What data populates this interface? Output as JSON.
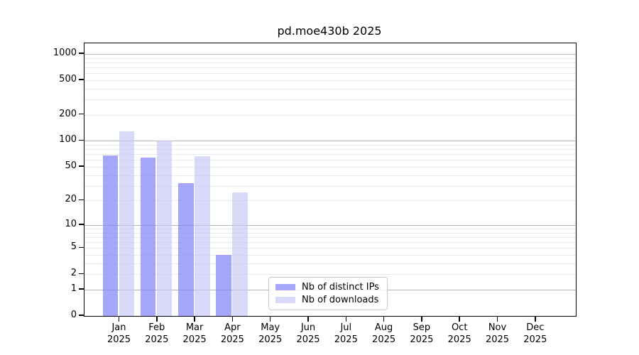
{
  "title": "pd.moe430b 2025",
  "legend": {
    "items": [
      {
        "label": "Nb of distinct IPs",
        "swatch_color": "#a7a7fa"
      },
      {
        "label": "Nb of downloads",
        "swatch_color": "#d9d9fa"
      }
    ]
  },
  "chart_data": {
    "type": "bar",
    "title": "pd.moe430b 2025",
    "categories": [
      "Jan",
      "Feb",
      "Mar",
      "Apr",
      "May",
      "Jun",
      "Jul",
      "Aug",
      "Sep",
      "Oct",
      "Nov",
      "Dec"
    ],
    "category_year": "2025",
    "series": [
      {
        "name": "Nb of distinct IPs",
        "bar_fill": "rgba(131,131,248,0.72)",
        "legend_color": "#a7a7fa",
        "values": [
          68,
          64,
          32,
          4,
          0,
          0,
          0,
          0,
          0,
          0,
          0,
          0
        ]
      },
      {
        "name": "Nb of downloads",
        "bar_fill": "rgba(199,199,248,0.68)",
        "legend_color": "#d9d9fa",
        "values": [
          128,
          100,
          67,
          25,
          0,
          0,
          0,
          0,
          0,
          0,
          0,
          0
        ]
      }
    ],
    "y_ticks": [
      0,
      1,
      2,
      5,
      10,
      20,
      50,
      100,
      200,
      500,
      1000
    ],
    "y_scale": "log10(1+v)",
    "y_axis_max": 1320,
    "grid": {
      "major_values": [
        1,
        10,
        100,
        1000
      ],
      "minor_multipliers": [
        2,
        3,
        4,
        5,
        6,
        7,
        8,
        9
      ],
      "major_color": "#b4b4b4",
      "minor_color": "#e9e9e9"
    },
    "legend_position": "lower center",
    "xlabel": "",
    "ylabel": ""
  }
}
